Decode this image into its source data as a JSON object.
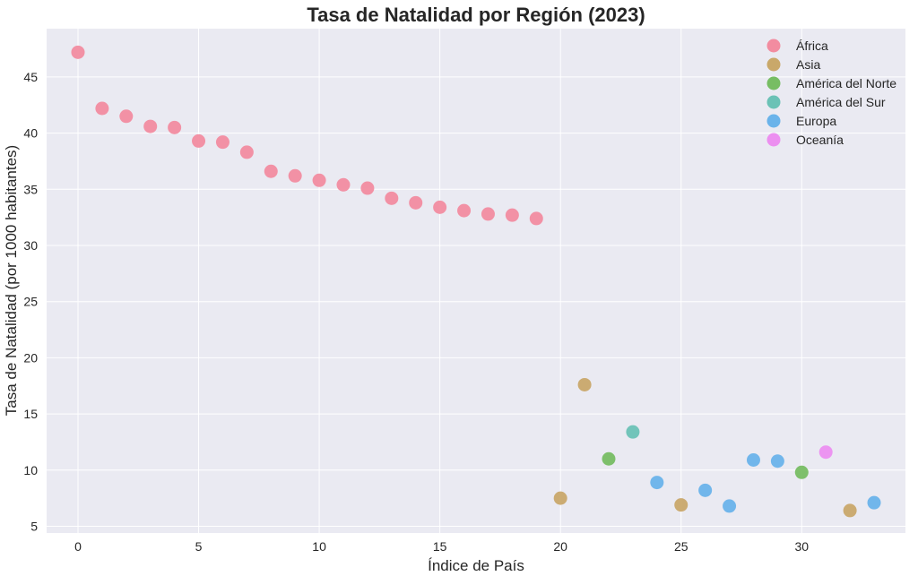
{
  "chart_data": {
    "type": "scatter",
    "title": "Tasa de Natalidad por Región (2023)",
    "xlabel": "Índice de País",
    "ylabel": "Tasa de Natalidad (por 1000 habitantes)",
    "xlim": [
      -1.3,
      34.3
    ],
    "ylim": [
      4.4,
      49.3
    ],
    "xticks": [
      0,
      5,
      10,
      15,
      20,
      25,
      30
    ],
    "yticks": [
      5,
      10,
      15,
      20,
      25,
      30,
      35,
      40,
      45
    ],
    "grid": true,
    "legend_position": "top-right",
    "series": [
      {
        "name": "África",
        "color": "#f28ca0",
        "points": [
          {
            "x": 0,
            "y": 47.2
          },
          {
            "x": 1,
            "y": 42.2
          },
          {
            "x": 2,
            "y": 41.5
          },
          {
            "x": 3,
            "y": 40.6
          },
          {
            "x": 4,
            "y": 40.5
          },
          {
            "x": 5,
            "y": 39.3
          },
          {
            "x": 6,
            "y": 39.2
          },
          {
            "x": 7,
            "y": 38.3
          },
          {
            "x": 8,
            "y": 36.6
          },
          {
            "x": 9,
            "y": 36.2
          },
          {
            "x": 10,
            "y": 35.8
          },
          {
            "x": 11,
            "y": 35.4
          },
          {
            "x": 12,
            "y": 35.1
          },
          {
            "x": 13,
            "y": 34.2
          },
          {
            "x": 14,
            "y": 33.8
          },
          {
            "x": 15,
            "y": 33.4
          },
          {
            "x": 16,
            "y": 33.1
          },
          {
            "x": 17,
            "y": 32.8
          },
          {
            "x": 18,
            "y": 32.7
          },
          {
            "x": 19,
            "y": 32.4
          }
        ]
      },
      {
        "name": "Asia",
        "color": "#c9a86a",
        "points": [
          {
            "x": 20,
            "y": 7.5
          },
          {
            "x": 21,
            "y": 17.6
          },
          {
            "x": 25,
            "y": 6.9
          },
          {
            "x": 32,
            "y": 6.4
          }
        ]
      },
      {
        "name": "América del Norte",
        "color": "#77bd63",
        "points": [
          {
            "x": 22,
            "y": 11.0
          },
          {
            "x": 30,
            "y": 9.8
          }
        ]
      },
      {
        "name": "América del Sur",
        "color": "#6bc2b6",
        "points": [
          {
            "x": 23,
            "y": 13.4
          }
        ]
      },
      {
        "name": "Europa",
        "color": "#6ab3ea",
        "points": [
          {
            "x": 24,
            "y": 8.9
          },
          {
            "x": 26,
            "y": 8.2
          },
          {
            "x": 27,
            "y": 6.8
          },
          {
            "x": 28,
            "y": 10.9
          },
          {
            "x": 29,
            "y": 10.8
          },
          {
            "x": 33,
            "y": 7.1
          }
        ]
      },
      {
        "name": "Oceanía",
        "color": "#ec8ff0",
        "points": [
          {
            "x": 31,
            "y": 11.6
          }
        ]
      }
    ]
  }
}
